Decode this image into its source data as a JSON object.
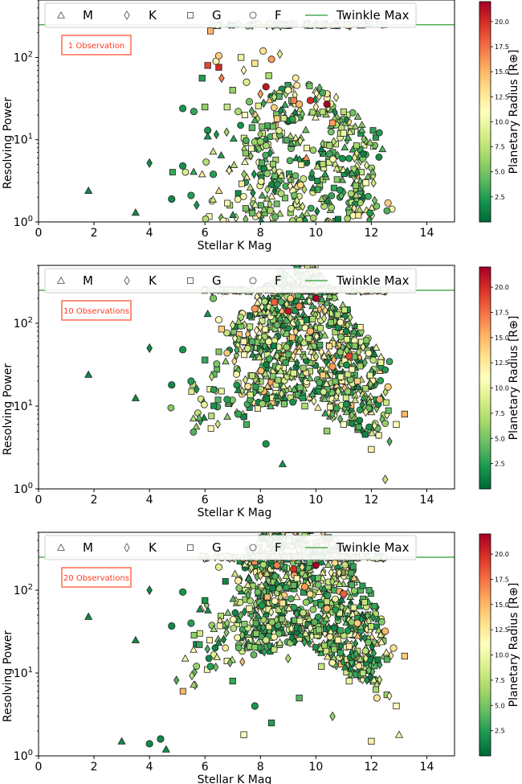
{
  "chart_data": [
    {
      "type": "scatter",
      "annotation": "1 Observation",
      "xlabel": "Stellar K Mag",
      "ylabel": "Resolving Power",
      "xlim": [
        0,
        15
      ],
      "ylim": [
        1,
        500
      ],
      "yscale": "log",
      "xticks": [
        "0",
        "2",
        "4",
        "6",
        "8",
        "10",
        "12",
        "14"
      ],
      "yticks": [
        "10^0",
        "10^1",
        "10^2"
      ],
      "reference_line": {
        "name": "Twinkle Max",
        "y": 250,
        "color": "#4caf50"
      },
      "colorbar": {
        "label": "Planetary Radius [R⊕]",
        "min": 0,
        "max": 22,
        "ticks": [
          "2.5",
          "5.0",
          "7.5",
          "10.0",
          "12.5",
          "15.0",
          "17.5",
          "20.0"
        ],
        "colormap": "RdYlGn_r"
      },
      "legend": [
        {
          "label": "M",
          "marker": "triangle"
        },
        {
          "label": "K",
          "marker": "diamond"
        },
        {
          "label": "G",
          "marker": "square"
        },
        {
          "label": "F",
          "marker": "circle"
        },
        {
          "label": "Twinkle Max",
          "marker": "line"
        }
      ],
      "legend_position": "top",
      "points": [
        {
          "x": 1.8,
          "y": 2.4,
          "m": "M",
          "r": 1.5
        },
        {
          "x": 3.5,
          "y": 1.3,
          "m": "M",
          "r": 1.5
        },
        {
          "x": 4.0,
          "y": 5.2,
          "m": "K",
          "r": 1.5
        },
        {
          "x": 4.8,
          "y": 1.9,
          "m": "F",
          "r": 1.5
        },
        {
          "x": 5.2,
          "y": 24,
          "m": "F",
          "r": 2.0
        },
        {
          "x": 5.2,
          "y": 4.8,
          "m": "F",
          "r": 1.8
        },
        {
          "x": 5.5,
          "y": 2.1,
          "m": "F",
          "r": 2.5
        },
        {
          "x": 5.6,
          "y": 22,
          "m": "F",
          "r": 3.0
        },
        {
          "x": 5.7,
          "y": 1.6,
          "m": "K",
          "r": 2.0
        },
        {
          "x": 5.9,
          "y": 56,
          "m": "G",
          "r": 2.5
        },
        {
          "x": 6.0,
          "y": 25,
          "m": "G",
          "r": 6.0
        },
        {
          "x": 6.1,
          "y": 13,
          "m": "F",
          "r": 2.0
        },
        {
          "x": 6.1,
          "y": 11,
          "m": "M",
          "r": 2.0
        },
        {
          "x": 6.1,
          "y": 80,
          "m": "G",
          "r": 19.0
        },
        {
          "x": 6.2,
          "y": 210,
          "m": "G",
          "r": 15.0
        },
        {
          "x": 6.3,
          "y": 3.8,
          "m": "F",
          "r": 2.5
        },
        {
          "x": 6.4,
          "y": 90,
          "m": "F",
          "r": 12.0
        },
        {
          "x": 6.5,
          "y": 105,
          "m": "F",
          "r": 14.0
        },
        {
          "x": 6.5,
          "y": 76,
          "m": "G",
          "r": 20.0
        },
        {
          "x": 6.6,
          "y": 56,
          "m": "K",
          "r": 17.0
        },
        {
          "x": 6.8,
          "y": 25,
          "m": "G",
          "r": 8.0
        },
        {
          "x": 7.0,
          "y": 40,
          "m": "G",
          "r": 6.0
        },
        {
          "x": 7.2,
          "y": 22,
          "m": "F",
          "r": 7.0
        },
        {
          "x": 7.3,
          "y": 100,
          "m": "G",
          "r": 10.0
        },
        {
          "x": 7.4,
          "y": 70,
          "m": "K",
          "r": 11.0
        },
        {
          "x": 7.5,
          "y": 50,
          "m": "F",
          "r": 9.0
        },
        {
          "x": 7.6,
          "y": 29,
          "m": "F",
          "r": 5.0
        },
        {
          "x": 7.7,
          "y": 14,
          "m": "G",
          "r": 4.0
        },
        {
          "x": 7.8,
          "y": 85,
          "m": "G",
          "r": 13.0
        },
        {
          "x": 8.0,
          "y": 36,
          "m": "K",
          "r": 16.0
        },
        {
          "x": 8.0,
          "y": 9.5,
          "m": "F",
          "r": 6.0
        },
        {
          "x": 8.1,
          "y": 120,
          "m": "F",
          "r": 13.0
        },
        {
          "x": 8.2,
          "y": 44,
          "m": "F",
          "r": 21.0
        },
        {
          "x": 8.3,
          "y": 60,
          "m": "G",
          "r": 7.0
        },
        {
          "x": 8.4,
          "y": 95,
          "m": "F",
          "r": 16.0
        },
        {
          "x": 8.5,
          "y": 33,
          "m": "K",
          "r": 8.0
        },
        {
          "x": 8.6,
          "y": 18,
          "m": "G",
          "r": 14.0
        },
        {
          "x": 8.7,
          "y": 110,
          "m": "K",
          "r": 9.0
        },
        {
          "x": 9.0,
          "y": 40,
          "m": "F",
          "r": 11.0
        },
        {
          "x": 9.2,
          "y": 30,
          "m": "G",
          "r": 17.0
        },
        {
          "x": 9.4,
          "y": 27,
          "m": "F",
          "r": 15.0
        },
        {
          "x": 9.8,
          "y": 30,
          "m": "F",
          "r": 20.0
        },
        {
          "x": 10.0,
          "y": 25,
          "m": "K",
          "r": 12.0
        },
        {
          "x": 10.4,
          "y": 27,
          "m": "F",
          "r": 22.0
        },
        {
          "x": 10.6,
          "y": 16,
          "m": "G",
          "r": 16.0
        },
        {
          "x": 11.0,
          "y": 12,
          "m": "G",
          "r": 10.0
        },
        {
          "x": 11.4,
          "y": 6.0,
          "m": "K",
          "r": 9.0
        },
        {
          "x": 11.8,
          "y": 3.0,
          "m": "G",
          "r": 11.0
        },
        {
          "x": 12.6,
          "y": 1.7,
          "m": "F",
          "r": 14.0
        }
      ]
    },
    {
      "type": "scatter",
      "annotation": "10 Observations",
      "xlabel": "Stellar K Mag",
      "ylabel": "Resolving Power",
      "xlim": [
        0,
        15
      ],
      "ylim": [
        1,
        500
      ],
      "yscale": "log",
      "xticks": [
        "0",
        "2",
        "4",
        "6",
        "8",
        "10",
        "12",
        "14"
      ],
      "yticks": [
        "10^0",
        "10^1",
        "10^2"
      ],
      "reference_line": {
        "name": "Twinkle Max",
        "y": 250,
        "color": "#4caf50"
      },
      "colorbar": {
        "label": "Planetary Radius [R⊕]",
        "min": 0,
        "max": 22,
        "ticks": [
          "2.5",
          "5.0",
          "7.5",
          "10.0",
          "12.5",
          "15.0",
          "17.5",
          "20.0"
        ],
        "colormap": "RdYlGn_r"
      },
      "legend": [
        {
          "label": "M",
          "marker": "triangle"
        },
        {
          "label": "K",
          "marker": "diamond"
        },
        {
          "label": "G",
          "marker": "square"
        },
        {
          "label": "F",
          "marker": "circle"
        },
        {
          "label": "Twinkle Max",
          "marker": "line"
        }
      ],
      "legend_position": "top",
      "points": [
        {
          "x": 1.8,
          "y": 24,
          "m": "M",
          "r": 1.5
        },
        {
          "x": 3.5,
          "y": 12.5,
          "m": "M",
          "r": 1.5
        },
        {
          "x": 4.0,
          "y": 50,
          "m": "K",
          "r": 1.5
        },
        {
          "x": 4.8,
          "y": 18,
          "m": "F",
          "r": 1.5
        },
        {
          "x": 5.2,
          "y": 48,
          "m": "F",
          "r": 2.0
        },
        {
          "x": 5.5,
          "y": 20,
          "m": "F",
          "r": 2.5
        },
        {
          "x": 5.7,
          "y": 16,
          "m": "K",
          "r": 2.0
        },
        {
          "x": 6.0,
          "y": 36,
          "m": "G",
          "r": 3.0
        },
        {
          "x": 6.1,
          "y": 130,
          "m": "M",
          "r": 2.0
        },
        {
          "x": 6.3,
          "y": 200,
          "m": "F",
          "r": 5.0
        },
        {
          "x": 6.5,
          "y": 110,
          "m": "F",
          "r": 11.0
        },
        {
          "x": 6.6,
          "y": 85,
          "m": "G",
          "r": 14.0
        },
        {
          "x": 6.8,
          "y": 12,
          "m": "F",
          "r": 2.5
        },
        {
          "x": 7.0,
          "y": 95,
          "m": "K",
          "r": 9.0
        },
        {
          "x": 7.2,
          "y": 8.0,
          "m": "F",
          "r": 3.0
        },
        {
          "x": 7.4,
          "y": 60,
          "m": "G",
          "r": 12.0
        },
        {
          "x": 7.5,
          "y": 6.0,
          "m": "G",
          "r": 3.5
        },
        {
          "x": 7.8,
          "y": 150,
          "m": "F",
          "r": 16.0
        },
        {
          "x": 8.0,
          "y": 90,
          "m": "K",
          "r": 13.0
        },
        {
          "x": 8.2,
          "y": 3.5,
          "m": "F",
          "r": 2.0
        },
        {
          "x": 8.3,
          "y": 60,
          "m": "F",
          "r": 10.0
        },
        {
          "x": 8.5,
          "y": 180,
          "m": "G",
          "r": 18.0
        },
        {
          "x": 8.6,
          "y": 40,
          "m": "K",
          "r": 8.0
        },
        {
          "x": 8.8,
          "y": 2.0,
          "m": "M",
          "r": 2.0
        },
        {
          "x": 9.0,
          "y": 140,
          "m": "F",
          "r": 21.0
        },
        {
          "x": 9.2,
          "y": 25,
          "m": "G",
          "r": 9.0
        },
        {
          "x": 9.4,
          "y": 160,
          "m": "F",
          "r": 17.0
        },
        {
          "x": 9.6,
          "y": 10,
          "m": "G",
          "r": 7.0
        },
        {
          "x": 9.8,
          "y": 80,
          "m": "F",
          "r": 15.0
        },
        {
          "x": 10.0,
          "y": 200,
          "m": "F",
          "r": 22.0
        },
        {
          "x": 10.2,
          "y": 45,
          "m": "K",
          "r": 12.0
        },
        {
          "x": 10.4,
          "y": 5.0,
          "m": "G",
          "r": 6.0
        },
        {
          "x": 10.6,
          "y": 30,
          "m": "F",
          "r": 16.0
        },
        {
          "x": 10.8,
          "y": 15,
          "m": "K",
          "r": 9.0
        },
        {
          "x": 11.0,
          "y": 6.0,
          "m": "G",
          "r": 11.0
        },
        {
          "x": 11.2,
          "y": 40,
          "m": "F",
          "r": 19.0
        },
        {
          "x": 11.5,
          "y": 20,
          "m": "G",
          "r": 14.0
        },
        {
          "x": 11.8,
          "y": 8.5,
          "m": "K",
          "r": 10.0
        },
        {
          "x": 12.0,
          "y": 3.0,
          "m": "G",
          "r": 12.0
        },
        {
          "x": 12.3,
          "y": 12,
          "m": "F",
          "r": 15.0
        },
        {
          "x": 12.6,
          "y": 17,
          "m": "F",
          "r": 14.0
        },
        {
          "x": 12.9,
          "y": 6.0,
          "m": "G",
          "r": 11.0
        },
        {
          "x": 13.2,
          "y": 8.0,
          "m": "G",
          "r": 15.0
        },
        {
          "x": 12.5,
          "y": 1.3,
          "m": "K",
          "r": 8.0
        }
      ]
    },
    {
      "type": "scatter",
      "annotation": "20 Observations",
      "xlabel": "Stellar K Mag",
      "ylabel": "Resolving Power",
      "xlim": [
        0,
        15
      ],
      "ylim": [
        1,
        500
      ],
      "yscale": "log",
      "xticks": [
        "0",
        "2",
        "4",
        "6",
        "8",
        "10",
        "12",
        "14"
      ],
      "yticks": [
        "10^0",
        "10^1",
        "10^2"
      ],
      "reference_line": {
        "name": "Twinkle Max",
        "y": 250,
        "color": "#4caf50"
      },
      "colorbar": {
        "label": "Planetary Radius [R⊕]",
        "min": 0,
        "max": 22,
        "ticks": [
          "2.5",
          "5.0",
          "7.5",
          "10.0",
          "12.5",
          "15.0",
          "17.5",
          "20.0"
        ],
        "colormap": "RdYlGn_r"
      },
      "legend": [
        {
          "label": "M",
          "marker": "triangle"
        },
        {
          "label": "K",
          "marker": "diamond"
        },
        {
          "label": "G",
          "marker": "square"
        },
        {
          "label": "F",
          "marker": "circle"
        },
        {
          "label": "Twinkle Max",
          "marker": "line"
        }
      ],
      "legend_position": "top",
      "points": [
        {
          "x": 1.8,
          "y": 48,
          "m": "M",
          "r": 1.5
        },
        {
          "x": 3.0,
          "y": 1.5,
          "m": "M",
          "r": 1.5
        },
        {
          "x": 3.5,
          "y": 25,
          "m": "M",
          "r": 1.5
        },
        {
          "x": 4.0,
          "y": 100,
          "m": "K",
          "r": 1.5
        },
        {
          "x": 4.0,
          "y": 1.4,
          "m": "F",
          "r": 1.5
        },
        {
          "x": 4.4,
          "y": 1.6,
          "m": "F",
          "r": 1.5
        },
        {
          "x": 4.6,
          "y": 1.2,
          "m": "M",
          "r": 1.5
        },
        {
          "x": 4.8,
          "y": 37,
          "m": "F",
          "r": 1.5
        },
        {
          "x": 5.2,
          "y": 95,
          "m": "F",
          "r": 2.0
        },
        {
          "x": 5.5,
          "y": 40,
          "m": "F",
          "r": 2.5
        },
        {
          "x": 5.8,
          "y": 22,
          "m": "G",
          "r": 3.0
        },
        {
          "x": 6.0,
          "y": 75,
          "m": "G",
          "r": 2.0
        },
        {
          "x": 6.2,
          "y": 12,
          "m": "F",
          "r": 2.5
        },
        {
          "x": 6.5,
          "y": 190,
          "m": "F",
          "r": 9.0
        },
        {
          "x": 6.8,
          "y": 40,
          "m": "K",
          "r": 6.0
        },
        {
          "x": 7.0,
          "y": 8.0,
          "m": "G",
          "r": 3.0
        },
        {
          "x": 7.2,
          "y": 130,
          "m": "F",
          "r": 12.0
        },
        {
          "x": 7.4,
          "y": 1.8,
          "m": "G",
          "r": 11.0
        },
        {
          "x": 7.6,
          "y": 60,
          "m": "G",
          "r": 10.0
        },
        {
          "x": 7.8,
          "y": 4.0,
          "m": "F",
          "r": 2.0
        },
        {
          "x": 8.0,
          "y": 150,
          "m": "K",
          "r": 14.0
        },
        {
          "x": 8.2,
          "y": 25,
          "m": "F",
          "r": 8.0
        },
        {
          "x": 8.4,
          "y": 2.5,
          "m": "G",
          "r": 2.5
        },
        {
          "x": 8.6,
          "y": 200,
          "m": "F",
          "r": 17.0
        },
        {
          "x": 8.8,
          "y": 70,
          "m": "G",
          "r": 13.0
        },
        {
          "x": 9.0,
          "y": 15,
          "m": "K",
          "r": 7.0
        },
        {
          "x": 9.2,
          "y": 180,
          "m": "F",
          "r": 20.0
        },
        {
          "x": 9.4,
          "y": 5.0,
          "m": "G",
          "r": 4.0
        },
        {
          "x": 9.6,
          "y": 110,
          "m": "F",
          "r": 16.0
        },
        {
          "x": 9.8,
          "y": 35,
          "m": "K",
          "r": 11.0
        },
        {
          "x": 10.0,
          "y": 200,
          "m": "F",
          "r": 22.0
        },
        {
          "x": 10.2,
          "y": 12,
          "m": "G",
          "r": 8.0
        },
        {
          "x": 10.4,
          "y": 60,
          "m": "F",
          "r": 15.0
        },
        {
          "x": 10.6,
          "y": 3.0,
          "m": "K",
          "r": 6.0
        },
        {
          "x": 10.8,
          "y": 25,
          "m": "G",
          "r": 12.0
        },
        {
          "x": 11.0,
          "y": 90,
          "m": "F",
          "r": 18.0
        },
        {
          "x": 11.2,
          "y": 8.0,
          "m": "G",
          "r": 10.0
        },
        {
          "x": 11.5,
          "y": 40,
          "m": "F",
          "r": 14.0
        },
        {
          "x": 11.8,
          "y": 15,
          "m": "K",
          "r": 9.0
        },
        {
          "x": 12.0,
          "y": 1.5,
          "m": "G",
          "r": 12.0
        },
        {
          "x": 12.2,
          "y": 5.0,
          "m": "F",
          "r": 13.0
        },
        {
          "x": 12.5,
          "y": 32,
          "m": "F",
          "r": 15.0
        },
        {
          "x": 12.8,
          "y": 20,
          "m": "F",
          "r": 13.0
        },
        {
          "x": 13.0,
          "y": 1.8,
          "m": "M",
          "r": 10.0
        },
        {
          "x": 13.2,
          "y": 16,
          "m": "G",
          "r": 14.0
        },
        {
          "x": 12.9,
          "y": 4.0,
          "m": "G",
          "r": 11.0
        }
      ]
    }
  ]
}
